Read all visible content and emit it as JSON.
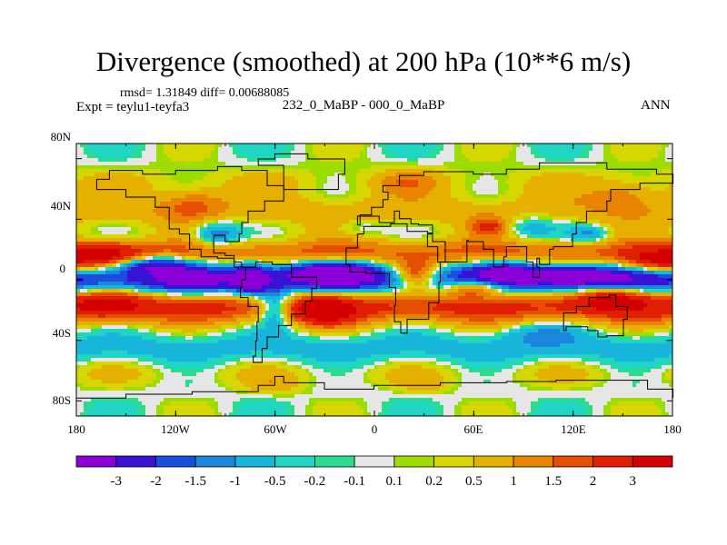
{
  "title": "Divergence (smoothed) at 200 hPa (10**6 m/s)",
  "stats": "rmsd= 1.31849 diff= 0.00688085",
  "experiment": "Expt = teylu1-teyfa3",
  "case": "232_0_MaBP - 000_0_MaBP",
  "season": "ANN",
  "lat_ticks": [
    "80N",
    "40N",
    "0",
    "40S",
    "80S"
  ],
  "lon_ticks": [
    "180",
    "120W",
    "60W",
    "0",
    "60E",
    "120E",
    "180"
  ],
  "colorbar": {
    "labels": [
      "-3",
      "-2",
      "-1.5",
      "-1",
      "-0.5",
      "-0.2",
      "-0.1",
      "0.1",
      "0.2",
      "0.5",
      "1",
      "1.5",
      "2",
      "3"
    ],
    "colors": [
      "#8a00d6",
      "#3a12d6",
      "#1a4fde",
      "#1a86dc",
      "#19b6dc",
      "#1fd6c6",
      "#2bdc8c",
      "#e6e6e6",
      "#9cdc00",
      "#d6d600",
      "#e6b000",
      "#e88400",
      "#e64e00",
      "#e01e00",
      "#d60000"
    ]
  },
  "field": {
    "zonal_bands": [
      {
        "lat": 0,
        "width": 10,
        "amp": -2.6
      },
      {
        "lat": -18,
        "width": 11,
        "amp": 2.2
      },
      {
        "lat": 18,
        "width": 9,
        "amp": 1.6
      },
      {
        "lat": -45,
        "width": 10,
        "amp": -0.7
      },
      {
        "lat": 45,
        "width": 12,
        "amp": 0.8
      },
      {
        "lat": -62,
        "width": 8,
        "amp": 0.35
      },
      {
        "lat": 65,
        "width": 10,
        "amp": 0.4
      }
    ],
    "blobs": [
      {
        "lon": -135,
        "lat": 10,
        "sx": 25,
        "sy": 6,
        "amp": -2.8
      },
      {
        "lon": -110,
        "lat": 0,
        "sx": 18,
        "sy": 6,
        "amp": -1.5
      },
      {
        "lon": -75,
        "lat": 0,
        "sx": 10,
        "sy": 10,
        "amp": -3.0
      },
      {
        "lon": -60,
        "lat": -18,
        "sx": 10,
        "sy": 12,
        "amp": -2.5
      },
      {
        "lon": -25,
        "lat": 5,
        "sx": 24,
        "sy": 7,
        "amp": -3.2
      },
      {
        "lon": 25,
        "lat": 3,
        "sx": 14,
        "sy": 9,
        "amp": 3.2
      },
      {
        "lon": 60,
        "lat": -5,
        "sx": 18,
        "sy": 6,
        "amp": 2.8
      },
      {
        "lon": 80,
        "lat": 5,
        "sx": 18,
        "sy": 7,
        "amp": -2.2
      },
      {
        "lon": 120,
        "lat": 2,
        "sx": 30,
        "sy": 6,
        "amp": -2.5
      },
      {
        "lon": 145,
        "lat": -12,
        "sx": 22,
        "sy": 8,
        "amp": 2.5
      },
      {
        "lon": 170,
        "lat": 12,
        "sx": 20,
        "sy": 8,
        "amp": 2.6
      },
      {
        "lon": -160,
        "lat": 15,
        "sx": 20,
        "sy": 9,
        "amp": 2.4
      },
      {
        "lon": -160,
        "lat": -15,
        "sx": 22,
        "sy": 9,
        "amp": 2.0
      },
      {
        "lon": -95,
        "lat": 30,
        "sx": 14,
        "sy": 9,
        "amp": -1.8
      },
      {
        "lon": -110,
        "lat": 50,
        "sx": 18,
        "sy": 10,
        "amp": 1.2
      },
      {
        "lon": -30,
        "lat": -20,
        "sx": 18,
        "sy": 10,
        "amp": 2.5
      },
      {
        "lon": 90,
        "lat": 35,
        "sx": 22,
        "sy": 8,
        "amp": -1.0
      },
      {
        "lon": 70,
        "lat": 35,
        "sx": 12,
        "sy": 6,
        "amp": 2.0
      },
      {
        "lon": 130,
        "lat": 30,
        "sx": 12,
        "sy": 6,
        "amp": -1.3
      },
      {
        "lon": 150,
        "lat": 55,
        "sx": 20,
        "sy": 10,
        "amp": 1.0
      },
      {
        "lon": 20,
        "lat": 65,
        "sx": 18,
        "sy": 8,
        "amp": 0.8
      },
      {
        "lon": -10,
        "lat": 35,
        "sx": 15,
        "sy": 6,
        "amp": -0.6
      },
      {
        "lon": 100,
        "lat": -35,
        "sx": 25,
        "sy": 8,
        "amp": -0.9
      },
      {
        "lon": -60,
        "lat": -70,
        "sx": 18,
        "sy": 6,
        "amp": 0.6
      },
      {
        "lon": 30,
        "lat": -70,
        "sx": 15,
        "sy": 5,
        "amp": 0.6
      }
    ]
  }
}
